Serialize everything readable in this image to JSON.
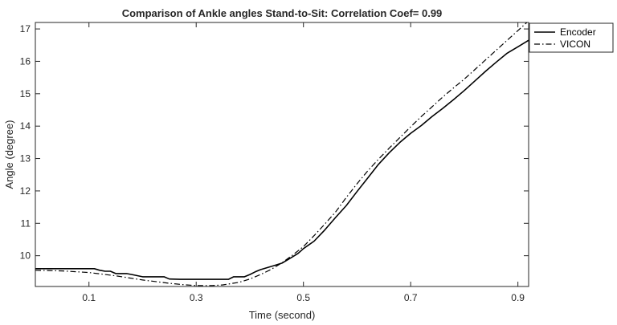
{
  "chart_data": {
    "type": "line",
    "title": "Comparison of Ankle angles Stand-to-Sit: Correlation Coef= 0.99",
    "xlabel": "Time (second)",
    "ylabel": "Angle (degree)",
    "xlim": [
      0.0,
      0.92
    ],
    "ylim": [
      9.05,
      17.2
    ],
    "xticks": [
      0.1,
      0.3,
      0.5,
      0.7,
      0.9
    ],
    "xtick_labels": [
      "0.1",
      "0.3",
      "0.5",
      "0.7",
      "0.9"
    ],
    "yticks": [
      10,
      11,
      12,
      13,
      14,
      15,
      16,
      17
    ],
    "ytick_labels": [
      "10",
      "11",
      "12",
      "13",
      "14",
      "15",
      "16",
      "17"
    ],
    "grid": false,
    "legend_position": "top-right",
    "series": [
      {
        "name": "Encoder",
        "color": "#000000",
        "dash": "solid",
        "x": [
          0.0,
          0.05,
          0.1,
          0.11,
          0.12,
          0.13,
          0.14,
          0.15,
          0.17,
          0.18,
          0.2,
          0.22,
          0.24,
          0.25,
          0.27,
          0.3,
          0.33,
          0.36,
          0.37,
          0.38,
          0.39,
          0.4,
          0.41,
          0.42,
          0.43,
          0.44,
          0.45,
          0.46,
          0.47,
          0.48,
          0.49,
          0.5,
          0.52,
          0.54,
          0.56,
          0.58,
          0.6,
          0.62,
          0.64,
          0.66,
          0.68,
          0.7,
          0.72,
          0.74,
          0.76,
          0.78,
          0.8,
          0.82,
          0.84,
          0.86,
          0.88,
          0.9,
          0.92
        ],
        "y": [
          9.6,
          9.6,
          9.6,
          9.6,
          9.55,
          9.52,
          9.52,
          9.45,
          9.45,
          9.42,
          9.35,
          9.35,
          9.35,
          9.28,
          9.27,
          9.27,
          9.27,
          9.27,
          9.35,
          9.35,
          9.35,
          9.42,
          9.5,
          9.57,
          9.62,
          9.67,
          9.72,
          9.77,
          9.87,
          9.97,
          10.07,
          10.22,
          10.45,
          10.8,
          11.18,
          11.55,
          11.98,
          12.4,
          12.82,
          13.18,
          13.5,
          13.78,
          14.02,
          14.3,
          14.55,
          14.82,
          15.1,
          15.4,
          15.7,
          15.98,
          16.25,
          16.45,
          16.65
        ]
      },
      {
        "name": "VICON",
        "color": "#000000",
        "dash": "dash-dot",
        "x": [
          0.0,
          0.05,
          0.1,
          0.15,
          0.2,
          0.25,
          0.28,
          0.3,
          0.33,
          0.35,
          0.38,
          0.4,
          0.42,
          0.44,
          0.46,
          0.48,
          0.5,
          0.52,
          0.54,
          0.56,
          0.58,
          0.6,
          0.62,
          0.64,
          0.66,
          0.68,
          0.7,
          0.72,
          0.74,
          0.76,
          0.78,
          0.8,
          0.82,
          0.84,
          0.86,
          0.88,
          0.9,
          0.92
        ],
        "y": [
          9.55,
          9.53,
          9.48,
          9.38,
          9.25,
          9.15,
          9.1,
          9.08,
          9.08,
          9.1,
          9.18,
          9.28,
          9.42,
          9.58,
          9.78,
          10.02,
          10.28,
          10.62,
          10.98,
          11.35,
          11.8,
          12.22,
          12.62,
          12.98,
          13.32,
          13.65,
          13.98,
          14.3,
          14.6,
          14.9,
          15.18,
          15.45,
          15.75,
          16.05,
          16.35,
          16.65,
          16.95,
          17.25
        ]
      }
    ]
  }
}
